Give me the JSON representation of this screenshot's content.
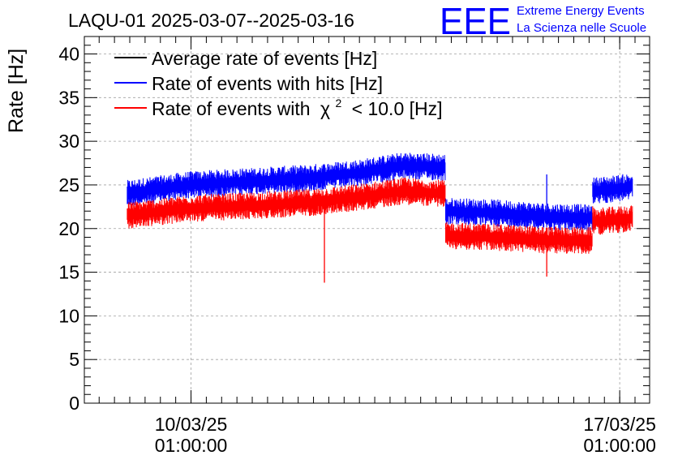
{
  "chart_data": {
    "type": "line",
    "title": "LAQU-01 2025-03-07--2025-03-16",
    "xlabel": "",
    "ylabel": "Rate [Hz]",
    "ylim": [
      0,
      42
    ],
    "y_ticks": [
      0,
      5,
      10,
      15,
      20,
      25,
      30,
      35,
      40
    ],
    "y_tick_labels": [
      "0",
      "5",
      "10",
      "15",
      "20",
      "25",
      "30",
      "35",
      "40"
    ],
    "x_unit": "days since 2025-03-07 00:00",
    "xlim": [
      1.3,
      10.53
    ],
    "x_ticks": [
      {
        "x": 3.0417,
        "date": "10/03/25",
        "time": "01:00:00"
      },
      {
        "x": 10.0417,
        "date": "17/03/25",
        "time": "01:00:00"
      }
    ],
    "grid": true,
    "legend_position": "top-left",
    "legend": [
      {
        "label": "Average rate of events [Hz]",
        "color": "#000000"
      },
      {
        "label": "Rate of events with hits [Hz]",
        "color": "#0000ff"
      },
      {
        "label_main": "Rate of events with",
        "label_symbol": "χ",
        "label_sup": "2",
        "label_tail": "< 10.0 [Hz]",
        "color": "#ff0000"
      }
    ],
    "series": [
      {
        "name": "Rate of events with hits [Hz]",
        "color": "#0000ff",
        "band_halfwidth": 1.2,
        "segments": [
          {
            "x": [
              2.0,
              3.0,
              4.0,
              5.0,
              5.8,
              6.5,
              7.2
            ],
            "y": [
              24.0,
              25.0,
              25.4,
              25.8,
              26.4,
              27.2,
              27.0
            ]
          },
          {
            "x": [
              7.2,
              8.0,
              8.8,
              9.6
            ],
            "y": [
              22.0,
              21.8,
              21.4,
              21.2
            ]
          },
          {
            "x": [
              9.6,
              10.0,
              10.25
            ],
            "y": [
              24.3,
              24.6,
              24.8
            ]
          }
        ],
        "spikes": [
          {
            "x": 8.85,
            "low": 21.0,
            "high": 26.2
          }
        ]
      },
      {
        "name": "Rate of events with χ2 < 10.0 [Hz]",
        "color": "#ff0000",
        "band_halfwidth": 1.2,
        "segments": [
          {
            "x": [
              2.0,
              3.0,
              4.0,
              5.0,
              5.8,
              6.5,
              7.2
            ],
            "y": [
              21.5,
              22.3,
              22.6,
              23.0,
              23.6,
              24.3,
              24.0
            ]
          },
          {
            "x": [
              7.2,
              8.0,
              8.8,
              9.6
            ],
            "y": [
              19.2,
              19.0,
              18.7,
              18.6
            ]
          },
          {
            "x": [
              9.6,
              10.0,
              10.25
            ],
            "y": [
              20.8,
              21.0,
              21.2
            ]
          }
        ],
        "spikes": [
          {
            "x": 5.22,
            "low": 13.8,
            "high": 22.5
          },
          {
            "x": 8.85,
            "low": 14.5,
            "high": 19.5
          }
        ]
      }
    ]
  },
  "logo": {
    "text": "EEE",
    "line1": "Extreme Energy Events",
    "line2": "La Scienza nelle Scuole",
    "color": "#0000ff"
  }
}
